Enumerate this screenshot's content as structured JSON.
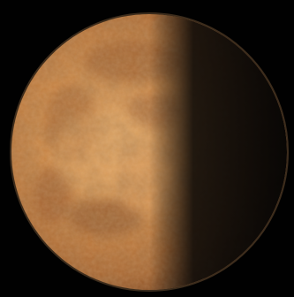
{
  "scene": {
    "subject": "planet-icon",
    "colors": {
      "background": "#010101",
      "surface_light": "#e0a15c",
      "surface_mid": "#c47a3a",
      "surface_dark": "#7a4420",
      "shadow": "#0b0a08",
      "rim_glow": "#f2b573"
    }
  }
}
